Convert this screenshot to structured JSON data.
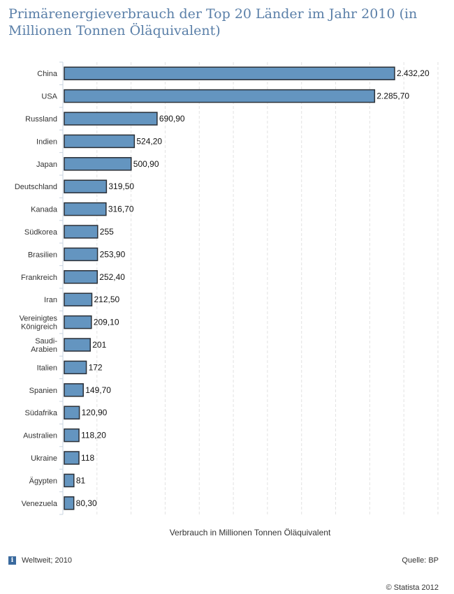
{
  "chart_data": {
    "type": "bar",
    "orientation": "horizontal",
    "title": "Primärenergieverbrauch der Top 20 Länder im Jahr 2010 (in Millionen Tonnen Öläquivalent)",
    "xlabel": "Verbrauch in Millionen Tonnen Öläquivalent",
    "ylabel": "",
    "xlim": [
      0,
      2750
    ],
    "grid_step": 250,
    "grid": true,
    "categories": [
      "China",
      "USA",
      "Russland",
      "Indien",
      "Japan",
      "Deutschland",
      "Kanada",
      "Südkorea",
      "Brasilien",
      "Frankreich",
      "Iran",
      "Vereinigtes Königreich",
      "Saudi-Arabien",
      "Italien",
      "Spanien",
      "Südafrika",
      "Australien",
      "Ukraine",
      "Ägypten",
      "Venezuela"
    ],
    "category_lines": [
      [
        "China"
      ],
      [
        "USA"
      ],
      [
        "Russland"
      ],
      [
        "Indien"
      ],
      [
        "Japan"
      ],
      [
        "Deutschland"
      ],
      [
        "Kanada"
      ],
      [
        "Südkorea"
      ],
      [
        "Brasilien"
      ],
      [
        "Frankreich"
      ],
      [
        "Iran"
      ],
      [
        "Vereinigtes",
        "Königreich"
      ],
      [
        "Saudi-",
        "Arabien"
      ],
      [
        "Italien"
      ],
      [
        "Spanien"
      ],
      [
        "Südafrika"
      ],
      [
        "Australien"
      ],
      [
        "Ukraine"
      ],
      [
        "Ägypten"
      ],
      [
        "Venezuela"
      ]
    ],
    "values": [
      2432.2,
      2285.7,
      690.9,
      524.2,
      500.9,
      319.5,
      316.7,
      255,
      253.9,
      252.4,
      212.5,
      209.1,
      201,
      172,
      149.7,
      120.9,
      118.2,
      118,
      81,
      80.3
    ],
    "labels": [
      "2.432,20",
      "2.285,70",
      "690,90",
      "524,20",
      "500,90",
      "319,50",
      "316,70",
      "255",
      "253,90",
      "252,40",
      "212,50",
      "209,10",
      "201",
      "172",
      "149,70",
      "120,90",
      "118,20",
      "118",
      "81",
      "80,30"
    ],
    "bar_color": "#6495c0"
  },
  "footer": {
    "info_icon": "i",
    "note": "Weltweit; 2010",
    "source": "Quelle: BP",
    "copyright": "© Statista 2012"
  }
}
